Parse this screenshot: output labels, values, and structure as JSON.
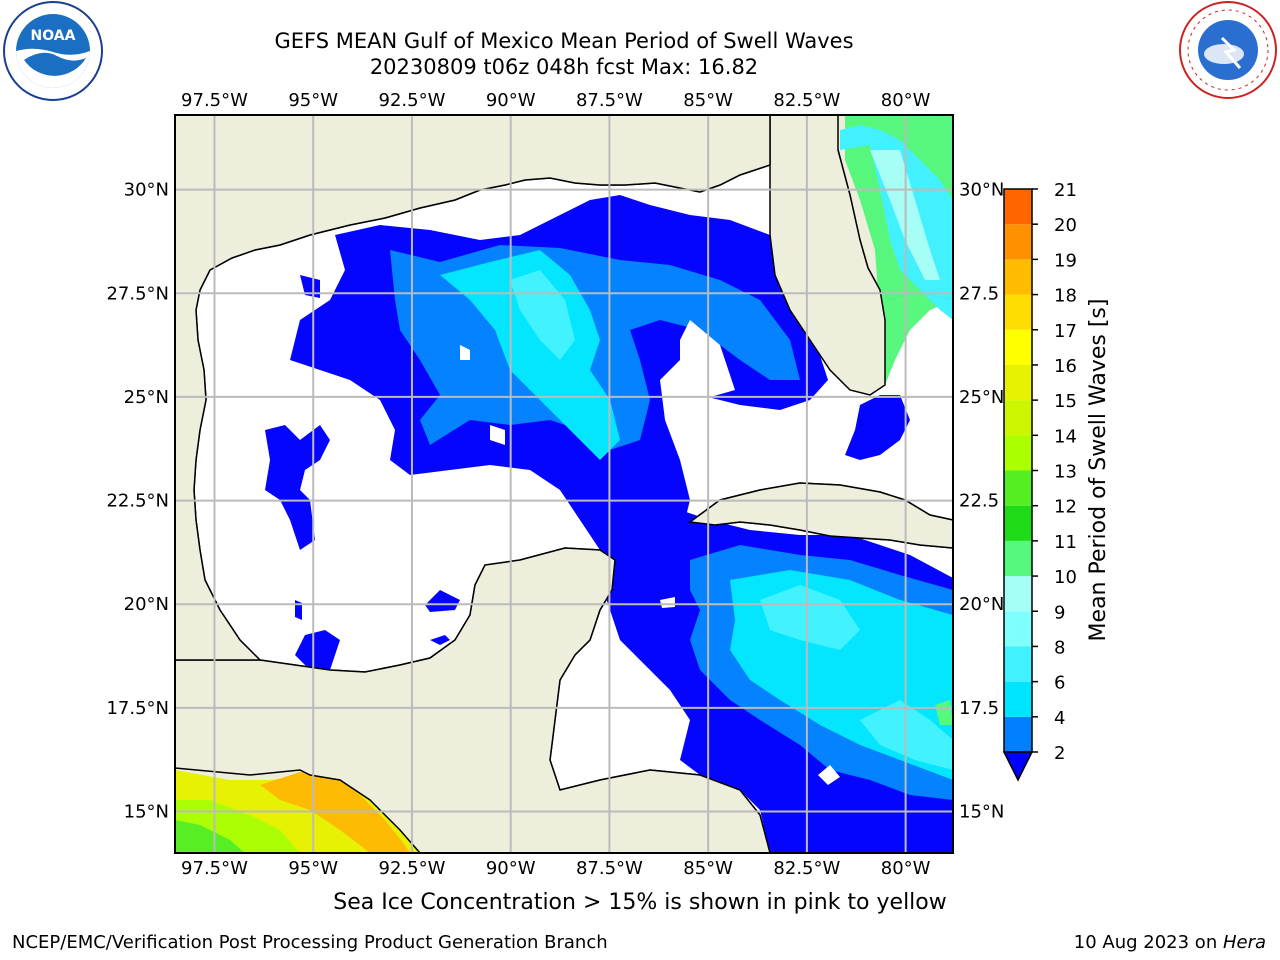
{
  "header": {
    "title_line1": "GEFS MEAN Gulf of Mexico Mean Period of Swell Waves",
    "title_line2": "20230809 t06z 048h fcst   Max: 16.82"
  },
  "logos": {
    "left": "noaa-logo",
    "left_text": "NOAA",
    "left_ring_text": "NATIONAL OCEANIC AND ATMOSPHERIC ADMINISTRATION · U.S. DEPARTMENT OF COMMERCE",
    "right": "nws-logo",
    "right_ring_text": "NATIONAL WEATHER SERVICE"
  },
  "map": {
    "lon_range": [
      -98.5,
      -78.8
    ],
    "lat_range": [
      14.0,
      31.8
    ],
    "lon_ticks": [
      "97.5°W",
      "95°W",
      "92.5°W",
      "90°W",
      "87.5°W",
      "85°W",
      "82.5°W",
      "80°W"
    ],
    "lon_tick_values": [
      -97.5,
      -95,
      -92.5,
      -90,
      -87.5,
      -85,
      -82.5,
      -80
    ],
    "lat_ticks_left": [
      "15°N",
      "17.5°N",
      "20°N",
      "22.5°N",
      "25°N",
      "27.5°N",
      "30°N"
    ],
    "lat_ticks_right": [
      "15°N",
      "17.5",
      "20°N",
      "22.5",
      "25°N",
      "27.5",
      "30°N"
    ],
    "lat_tick_values": [
      15,
      17.5,
      20,
      22.5,
      25,
      27.5,
      30
    ],
    "land_color": "#eeeedd",
    "grid_color": "#bbbbbb"
  },
  "colorbar": {
    "label": "Mean Period of Swell Waves [s]",
    "ticks": [
      "2",
      "4",
      "6",
      "8",
      "9",
      "10",
      "11",
      "12",
      "13",
      "14",
      "15",
      "16",
      "17",
      "18",
      "19",
      "20",
      "21"
    ],
    "colors": [
      "#0080ff",
      "#00e5ff",
      "#40f2ff",
      "#80ffff",
      "#a6fff7",
      "#55f77c",
      "#1ddb17",
      "#55ee22",
      "#aaff00",
      "#ccf500",
      "#e6f200",
      "#ffff00",
      "#ffdd00",
      "#ffbb00",
      "#ff9000",
      "#ff6600",
      "#ff3300",
      "#ff0000"
    ],
    "under_color": "#0000ff"
  },
  "notes": {
    "sea_ice": "Sea Ice Concentration > 15% is shown in pink to yellow"
  },
  "footer": {
    "left": "NCEP/EMC/Verification Post Processing Product Generation Branch",
    "date": "10 Aug 2023 on ",
    "machine": "Hera"
  }
}
